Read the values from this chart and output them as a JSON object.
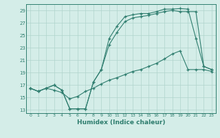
{
  "xlabel": "Humidex (Indice chaleur)",
  "bg_color": "#d4ede8",
  "grid_color": "#b0d4cc",
  "line_color": "#2e7d6e",
  "xlim": [
    -0.5,
    23.5
  ],
  "ylim": [
    12.5,
    30.0
  ],
  "xticks": [
    0,
    1,
    2,
    3,
    4,
    5,
    6,
    7,
    8,
    9,
    10,
    11,
    12,
    13,
    14,
    15,
    16,
    17,
    18,
    19,
    20,
    21,
    22,
    23
  ],
  "yticks": [
    13,
    15,
    17,
    19,
    21,
    23,
    25,
    27,
    29
  ],
  "line_high": {
    "x": [
      0,
      1,
      2,
      3,
      4,
      5,
      6,
      7,
      8,
      9,
      10,
      11,
      12,
      13,
      14,
      15,
      16,
      17,
      18,
      19,
      20,
      21,
      22,
      23
    ],
    "y": [
      16.5,
      16.0,
      16.5,
      17.0,
      16.2,
      13.2,
      13.2,
      13.2,
      17.5,
      19.5,
      24.5,
      26.5,
      28.0,
      28.3,
      28.5,
      28.5,
      28.8,
      29.2,
      29.2,
      29.3,
      29.2,
      24.5,
      20.0,
      19.5
    ]
  },
  "line_mid": {
    "x": [
      0,
      1,
      2,
      3,
      4,
      5,
      6,
      7,
      8,
      9,
      10,
      11,
      12,
      13,
      14,
      15,
      16,
      17,
      18,
      19,
      20,
      21,
      22,
      23
    ],
    "y": [
      16.5,
      16.0,
      16.5,
      17.0,
      16.2,
      13.2,
      13.2,
      13.2,
      17.5,
      19.5,
      23.5,
      25.5,
      27.2,
      27.8,
      28.0,
      28.2,
      28.5,
      28.8,
      29.0,
      28.8,
      28.8,
      28.8,
      20.0,
      19.5
    ]
  },
  "line_low": {
    "x": [
      0,
      1,
      2,
      3,
      4,
      5,
      6,
      7,
      8,
      9,
      10,
      11,
      12,
      13,
      14,
      15,
      16,
      17,
      18,
      19,
      20,
      21,
      22,
      23
    ],
    "y": [
      16.5,
      16.0,
      16.5,
      16.2,
      15.8,
      14.8,
      15.2,
      16.0,
      16.5,
      17.2,
      17.8,
      18.2,
      18.7,
      19.2,
      19.5,
      20.0,
      20.5,
      21.2,
      22.0,
      22.5,
      19.5,
      19.5,
      19.5,
      19.2
    ]
  }
}
